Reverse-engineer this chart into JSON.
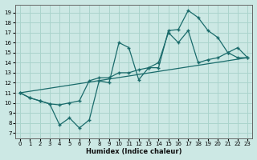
{
  "xlabel": "Humidex (Indice chaleur)",
  "background_color": "#cce8e4",
  "grid_color": "#aad4cc",
  "line_color": "#1a6b6b",
  "xticks": [
    0,
    1,
    2,
    3,
    4,
    5,
    6,
    7,
    8,
    9,
    10,
    11,
    12,
    13,
    14,
    15,
    16,
    17,
    18,
    19,
    20,
    21,
    22,
    23
  ],
  "yticks": [
    7,
    8,
    9,
    10,
    11,
    12,
    13,
    14,
    15,
    16,
    17,
    18,
    19
  ],
  "xlim": [
    -0.5,
    23.5
  ],
  "ylim": [
    6.5,
    19.8
  ],
  "line1_x": [
    0,
    1,
    2,
    3,
    4,
    5,
    6,
    7,
    8,
    9,
    10,
    11,
    12,
    13,
    14,
    15,
    16,
    17,
    18,
    19,
    20,
    21,
    22,
    23
  ],
  "line1_y": [
    11.0,
    10.5,
    10.2,
    9.9,
    7.8,
    8.5,
    7.5,
    8.3,
    12.2,
    12.0,
    16.0,
    15.5,
    12.3,
    13.5,
    13.5,
    17.2,
    17.3,
    19.2,
    18.5,
    17.2,
    16.5,
    15.0,
    15.5,
    14.5
  ],
  "line2_x": [
    0,
    1,
    2,
    3,
    4,
    5,
    6,
    7,
    8,
    9,
    10,
    11,
    12,
    13,
    14,
    15,
    16,
    17,
    18,
    19,
    20,
    21,
    22,
    23
  ],
  "line2_y": [
    11.0,
    10.5,
    10.2,
    9.9,
    9.8,
    10.0,
    10.2,
    12.2,
    12.5,
    12.5,
    13.0,
    13.0,
    13.3,
    13.5,
    14.0,
    17.0,
    16.0,
    17.2,
    14.0,
    14.3,
    14.5,
    15.0,
    14.5,
    14.5
  ],
  "line3_x": [
    0,
    23
  ],
  "line3_y": [
    11.0,
    14.5
  ]
}
